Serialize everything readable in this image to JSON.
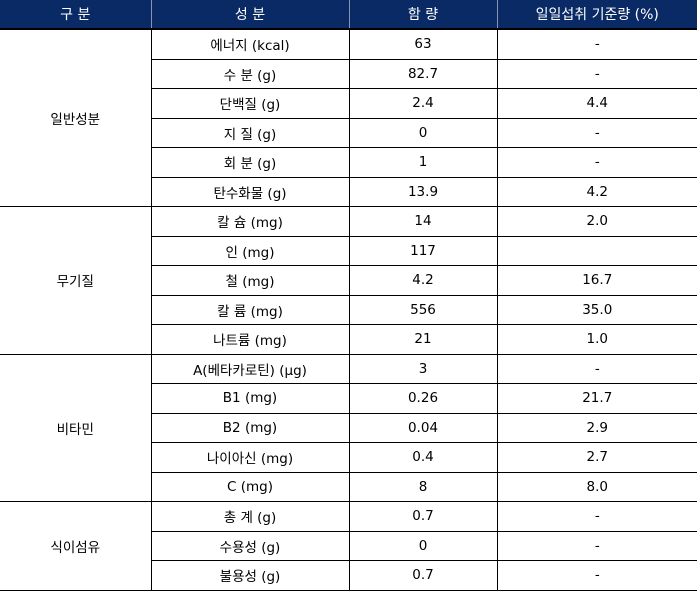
{
  "header": {
    "col1": "구  분",
    "col2": "성  분",
    "col3": "함  량",
    "col4": "일일섭취 기준량 (%)"
  },
  "groups": [
    {
      "name": "일반성분",
      "rows": [
        {
          "name": "에너지 (kcal)",
          "amount": "63",
          "daily": "-"
        },
        {
          "name": "수  분 (g)",
          "amount": "82.7",
          "daily": "-"
        },
        {
          "name": "단백질 (g)",
          "amount": "2.4",
          "daily": "4.4"
        },
        {
          "name": "지  질 (g)",
          "amount": "0",
          "daily": "-"
        },
        {
          "name": "회  분 (g)",
          "amount": "1",
          "daily": "-"
        },
        {
          "name": "탄수화물 (g)",
          "amount": "13.9",
          "daily": "4.2"
        }
      ]
    },
    {
      "name": "무기질",
      "rows": [
        {
          "name": "칼  슘 (mg)",
          "amount": "14",
          "daily": "2.0"
        },
        {
          "name": "인 (mg)",
          "amount": "117",
          "daily": ""
        },
        {
          "name": "철 (mg)",
          "amount": "4.2",
          "daily": "16.7"
        },
        {
          "name": "칼  륨 (mg)",
          "amount": "556",
          "daily": "35.0"
        },
        {
          "name": "나트륨 (mg)",
          "amount": "21",
          "daily": "1.0"
        }
      ]
    },
    {
      "name": "비타민",
      "rows": [
        {
          "name": "A(베타카로틴) (μg)",
          "amount": "3",
          "daily": "-"
        },
        {
          "name": "B1 (mg)",
          "amount": "0.26",
          "daily": "21.7"
        },
        {
          "name": "B2 (mg)",
          "amount": "0.04",
          "daily": "2.9"
        },
        {
          "name": "나이아신 (mg)",
          "amount": "0.4",
          "daily": "2.7"
        },
        {
          "name": "C (mg)",
          "amount": "8",
          "daily": "8.0"
        }
      ]
    },
    {
      "name": "식이섬유",
      "rows": [
        {
          "name": "총  계 (g)",
          "amount": "0.7",
          "daily": "-"
        },
        {
          "name": "수용성 (g)",
          "amount": "0",
          "daily": "-"
        },
        {
          "name": "불용성 (g)",
          "amount": "0.7",
          "daily": "-"
        }
      ]
    }
  ],
  "colors": {
    "header_bg": "#0a2a66",
    "header_text": "#ffffff",
    "border": "#000000"
  }
}
